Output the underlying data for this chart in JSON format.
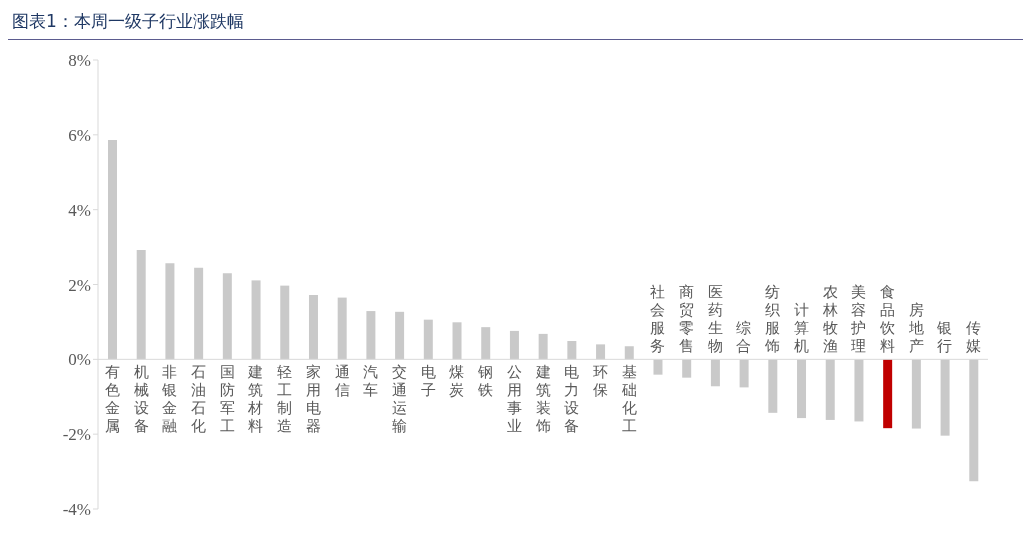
{
  "chart_data": {
    "type": "bar",
    "title": "图表1：本周一级子行业涨跌幅",
    "categories": [
      "有色金属",
      "机械设备",
      "非银金融",
      "石油石化",
      "国防军工",
      "建筑材料",
      "轻工制造",
      "家用电器",
      "通信",
      "汽车",
      "交通运输",
      "电子",
      "煤炭",
      "钢铁",
      "公用事业",
      "建筑装饰",
      "电力设备",
      "环保",
      "基础化工",
      "社会服务",
      "商贸零售",
      "医药生物",
      "综合",
      "纺织服饰",
      "计算机",
      "农林牧渔",
      "美容护理",
      "食品饮料",
      "房地产",
      "银行",
      "传媒"
    ],
    "values": [
      5.86,
      2.92,
      2.57,
      2.45,
      2.3,
      2.11,
      1.97,
      1.72,
      1.65,
      1.29,
      1.27,
      1.06,
      0.99,
      0.86,
      0.76,
      0.68,
      0.49,
      0.4,
      0.35,
      -0.41,
      -0.49,
      -0.72,
      -0.75,
      -1.43,
      -1.57,
      -1.62,
      -1.66,
      -1.84,
      -1.85,
      -2.04,
      -3.26
    ],
    "colors": [
      "#c9c9c9",
      "#c9c9c9",
      "#c9c9c9",
      "#c9c9c9",
      "#c9c9c9",
      "#c9c9c9",
      "#c9c9c9",
      "#c9c9c9",
      "#c9c9c9",
      "#c9c9c9",
      "#c9c9c9",
      "#c9c9c9",
      "#c9c9c9",
      "#c9c9c9",
      "#c9c9c9",
      "#c9c9c9",
      "#c9c9c9",
      "#c9c9c9",
      "#c9c9c9",
      "#c9c9c9",
      "#c9c9c9",
      "#c9c9c9",
      "#c9c9c9",
      "#c9c9c9",
      "#c9c9c9",
      "#c9c9c9",
      "#c9c9c9",
      "#c00000",
      "#c9c9c9",
      "#c9c9c9",
      "#c9c9c9"
    ],
    "ylim": [
      -4,
      8
    ],
    "yticks": [
      {
        "value": -4,
        "label": "-4%"
      },
      {
        "value": -2,
        "label": "-2%"
      },
      {
        "value": 0,
        "label": "0%"
      },
      {
        "value": 2,
        "label": "2%"
      },
      {
        "value": 4,
        "label": "4%"
      },
      {
        "value": 6,
        "label": "6%"
      },
      {
        "value": 8,
        "label": "8%"
      }
    ],
    "grid": false,
    "legend": false
  }
}
